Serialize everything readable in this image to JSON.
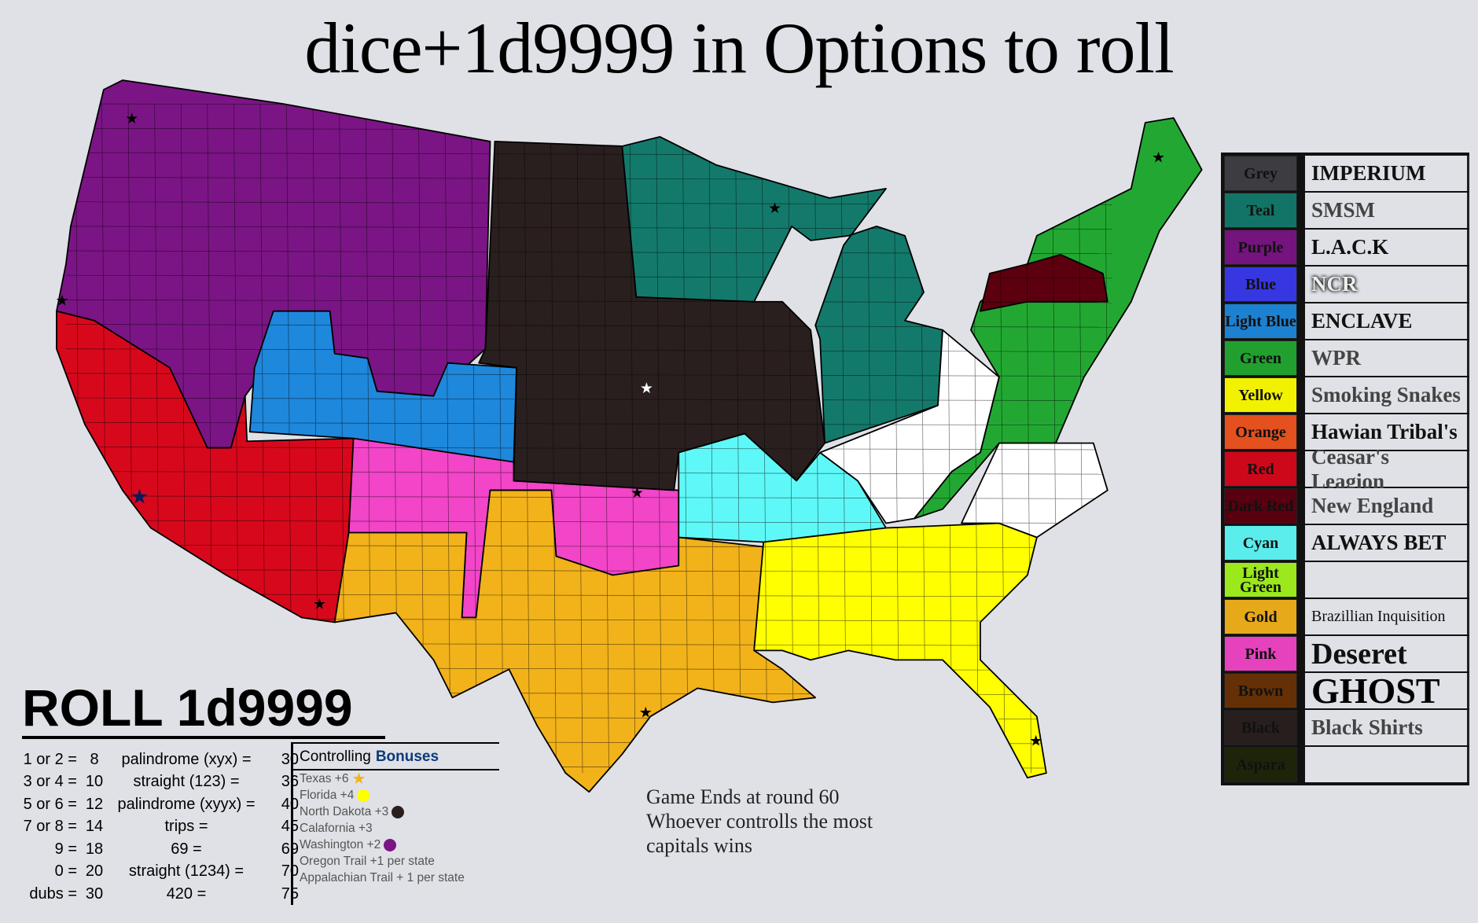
{
  "title": "dice+1d9999 in Options to roll",
  "legend": [
    {
      "color_label": "Grey",
      "color": "#3f3f44",
      "faction": "IMPERIUM"
    },
    {
      "color_label": "Teal",
      "color": "#137a6b",
      "faction": "SMSM"
    },
    {
      "color_label": "Purple",
      "color": "#7b1585",
      "faction": "L.A.C.K"
    },
    {
      "color_label": "Blue",
      "color": "#3a3aee",
      "faction": "NCR"
    },
    {
      "color_label": "Light Blue",
      "color": "#1e88dc",
      "faction": "ENCLAVE"
    },
    {
      "color_label": "Green",
      "color": "#22a832",
      "faction": "WPR"
    },
    {
      "color_label": "Yellow",
      "color": "#ffff00",
      "faction": "Smoking Snakes"
    },
    {
      "color_label": "Orange",
      "color": "#f0541f",
      "faction": "Hawian Tribal's"
    },
    {
      "color_label": "Red",
      "color": "#d8081c",
      "faction": "Ceasar's Leagion"
    },
    {
      "color_label": "Dark Red",
      "color": "#5c0010",
      "faction": "New England"
    },
    {
      "color_label": "Cyan",
      "color": "#5ff8f8",
      "faction": "ALWAYS BET"
    },
    {
      "color_label": "Light Green",
      "color": "#a3f41e",
      "faction": ""
    },
    {
      "color_label": "Gold",
      "color": "#f2b21a",
      "faction": "Brazillian Inquisition"
    },
    {
      "color_label": "Pink",
      "color": "#f245c8",
      "faction": "Deseret"
    },
    {
      "color_label": "Brown",
      "color": "#6a3206",
      "faction": "GHOST"
    },
    {
      "color_label": "Black",
      "color": "#2a1f1f",
      "faction": "Black Shirts"
    },
    {
      "color_label": "Aspara",
      "color": "#1e260a",
      "faction": ""
    }
  ],
  "roll": {
    "title": "ROLL 1d9999",
    "rows": [
      [
        "1 or 2 =",
        "8",
        "palindrome (xyx) =",
        "30"
      ],
      [
        "3 or 4 =",
        "10",
        "straight (123) =",
        "36"
      ],
      [
        "5 or 6 =",
        "12",
        "palindrome (xyyx) =",
        "40"
      ],
      [
        "7 or 8 =",
        "14",
        "trips =",
        "45"
      ],
      [
        "9 =",
        "18",
        "69 =",
        "69"
      ],
      [
        "0 =",
        "20",
        "straight (1234) =",
        "70"
      ],
      [
        "dubs =",
        "30",
        "420 =",
        "75"
      ]
    ]
  },
  "bonuses": {
    "title_a": "Controlling",
    "title_b": "Bonuses",
    "items": [
      {
        "text": "Texas +6",
        "marker": "star",
        "color": "#f2b21a"
      },
      {
        "text": "Florida +4",
        "marker": "dot",
        "color": "#ffff00"
      },
      {
        "text": "North Dakota +3",
        "marker": "dot",
        "color": "#2a1f1f"
      },
      {
        "text": "Calafornia +3",
        "marker": "",
        "color": ""
      },
      {
        "text": "Washington +2",
        "marker": "dot",
        "color": "#7b1585"
      },
      {
        "text": "Oregon Trail +1 per state",
        "marker": "",
        "color": ""
      },
      {
        "text": "Appalachian Trail + 1 per state",
        "marker": "",
        "color": ""
      }
    ]
  },
  "end_note": [
    "Game Ends at round 60",
    "Whoever controlls the most",
    "capitals wins"
  ],
  "map": {
    "regions": [
      {
        "name": "purple",
        "color": "#7b1585"
      },
      {
        "name": "red",
        "color": "#d8081c"
      },
      {
        "name": "light-blue",
        "color": "#1e88dc"
      },
      {
        "name": "pink",
        "color": "#f245c8"
      },
      {
        "name": "gold",
        "color": "#f2b21a"
      },
      {
        "name": "black",
        "color": "#2a1f1f"
      },
      {
        "name": "teal",
        "color": "#137a6b"
      },
      {
        "name": "cyan",
        "color": "#5ff8f8"
      },
      {
        "name": "unclaimed",
        "color": "#ffffff"
      },
      {
        "name": "green",
        "color": "#22a832"
      },
      {
        "name": "dark-red",
        "color": "#5c0010"
      },
      {
        "name": "yellow",
        "color": "#ffff00"
      }
    ]
  }
}
